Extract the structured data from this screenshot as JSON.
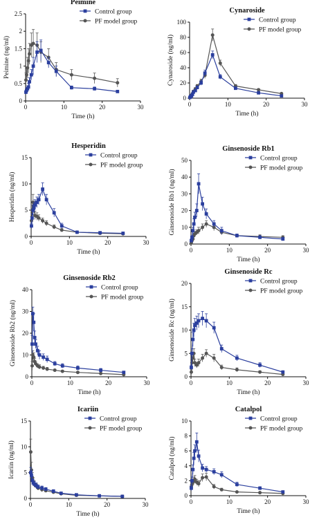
{
  "chart_data": [
    {
      "type": "line",
      "title": "Peimine",
      "xlabel": "Time (h)",
      "ylabel": "Peimine (ng/ml)",
      "xlim": [
        0,
        30
      ],
      "xticks": [
        0,
        10,
        20,
        30
      ],
      "ylim": [
        0,
        2.5
      ],
      "yticks": [
        0,
        0.5,
        1,
        1.5,
        2,
        2.5
      ],
      "grid": false,
      "legend": "top-right",
      "series": [
        {
          "name": "Control group",
          "color": "#2b3f9e",
          "marker": "square",
          "x": [
            0.083,
            0.25,
            0.5,
            0.75,
            1,
            1.5,
            2,
            3,
            4,
            6,
            8,
            12,
            18,
            24
          ],
          "y": [
            0.25,
            0.3,
            0.35,
            0.4,
            0.55,
            0.75,
            1.0,
            1.4,
            1.45,
            1.1,
            0.85,
            0.38,
            0.35,
            0.27
          ],
          "err": [
            0.05,
            0.08,
            0.08,
            0.1,
            0.12,
            0.15,
            0.25,
            0.3,
            0.3,
            0.15,
            0.15,
            0.05,
            0.05,
            0.04
          ]
        },
        {
          "name": "PF model group",
          "color": "#555555",
          "marker": "circle",
          "x": [
            0.083,
            0.25,
            0.5,
            0.75,
            1,
            1.5,
            2,
            3,
            4,
            6,
            8,
            12,
            18,
            24
          ],
          "y": [
            0.6,
            0.75,
            0.95,
            1.15,
            1.35,
            1.6,
            1.65,
            1.6,
            1.4,
            1.25,
            0.9,
            0.75,
            0.65,
            0.52
          ],
          "err": [
            0.2,
            0.2,
            0.3,
            0.35,
            0.3,
            0.35,
            0.4,
            0.35,
            0.3,
            0.25,
            0.2,
            0.15,
            0.15,
            0.12
          ]
        }
      ]
    },
    {
      "type": "line",
      "title": "Cynaroside",
      "xlabel": "Time (h)",
      "ylabel": "Cynaroside (ng/ml)",
      "xlim": [
        0,
        30
      ],
      "xticks": [
        0,
        10,
        20,
        30
      ],
      "ylim": [
        0,
        100
      ],
      "yticks": [
        0,
        20,
        40,
        60,
        80,
        100
      ],
      "grid": false,
      "legend": "top-right",
      "series": [
        {
          "name": "Control group",
          "color": "#2b3f9e",
          "marker": "square",
          "x": [
            0.083,
            0.25,
            0.5,
            0.75,
            1,
            1.5,
            2,
            3,
            4,
            6,
            8,
            12,
            18,
            24
          ],
          "y": [
            1,
            2,
            3,
            5,
            8,
            10,
            14,
            20,
            33,
            57,
            28,
            13,
            7,
            3
          ],
          "err": [
            0.5,
            1,
            1,
            1,
            1.5,
            2,
            2,
            3,
            4,
            5,
            3,
            2,
            1,
            1
          ]
        },
        {
          "name": "PF model group",
          "color": "#555555",
          "marker": "circle",
          "x": [
            0.083,
            0.25,
            0.5,
            0.75,
            1,
            1.5,
            2,
            3,
            4,
            6,
            8,
            12,
            18,
            24
          ],
          "y": [
            1,
            2,
            4,
            6,
            9,
            12,
            16,
            22,
            30,
            83,
            46,
            16,
            11,
            6
          ],
          "err": [
            0.5,
            1,
            1,
            1,
            1.5,
            2,
            2,
            3,
            4,
            8,
            4,
            2,
            1.5,
            1
          ]
        }
      ]
    },
    {
      "type": "line",
      "title": "Hesperidin",
      "xlabel": "Time (h)",
      "ylabel": "Hesperidin (ng/ml)",
      "xlim": [
        0,
        30
      ],
      "xticks": [
        0,
        10,
        20,
        30
      ],
      "ylim": [
        0,
        15
      ],
      "yticks": [
        0,
        5,
        10,
        15
      ],
      "grid": false,
      "legend": "top-right",
      "series": [
        {
          "name": "Control group",
          "color": "#2b3f9e",
          "marker": "square",
          "x": [
            0.083,
            0.25,
            0.5,
            0.75,
            1,
            1.5,
            2,
            3,
            4,
            6,
            8,
            12,
            18,
            24
          ],
          "y": [
            2,
            3.5,
            5,
            5.5,
            6,
            6.5,
            7,
            9,
            7,
            4.5,
            2,
            0.8,
            0.7,
            0.6
          ],
          "err": [
            0.5,
            0.8,
            1,
            1,
            1,
            1,
            1,
            1.2,
            1,
            0.8,
            0.5,
            0.2,
            0.2,
            0.2
          ]
        },
        {
          "name": "PF model group",
          "color": "#555555",
          "marker": "circle",
          "x": [
            0.083,
            0.25,
            0.5,
            0.75,
            1,
            1.5,
            2,
            3,
            4,
            6,
            8,
            12,
            18,
            24
          ],
          "y": [
            3,
            5,
            6.5,
            5.5,
            4,
            3.8,
            3.5,
            3,
            2.5,
            1.8,
            1.2,
            0.8,
            0.6,
            0.5
          ],
          "err": [
            0.8,
            1,
            1.5,
            1,
            0.8,
            0.7,
            0.6,
            0.5,
            0.5,
            0.4,
            0.3,
            0.2,
            0.2,
            0.2
          ]
        }
      ]
    },
    {
      "type": "line",
      "title": "Ginsenoside Rb1",
      "xlabel": "Time (h)",
      "ylabel": "Ginsenoside Rb1 (ng/ml)",
      "xlim": [
        0,
        30
      ],
      "xticks": [
        0,
        10,
        20,
        30
      ],
      "ylim": [
        0,
        50
      ],
      "yticks": [
        0,
        10,
        20,
        30,
        40,
        50
      ],
      "grid": false,
      "legend": "top-right",
      "series": [
        {
          "name": "Control group",
          "color": "#2b3f9e",
          "marker": "square",
          "x": [
            0.083,
            0.25,
            0.5,
            0.75,
            1,
            1.5,
            2,
            3,
            4,
            6,
            8,
            12,
            18,
            24
          ],
          "y": [
            2,
            4,
            8,
            12,
            16,
            20,
            36,
            24,
            18,
            12,
            8,
            5,
            4,
            3
          ],
          "err": [
            1,
            1,
            2,
            3,
            3,
            4,
            6,
            4,
            3,
            2,
            2,
            1,
            1,
            1
          ]
        },
        {
          "name": "PF model group",
          "color": "#555555",
          "marker": "circle",
          "x": [
            0.083,
            0.25,
            0.5,
            0.75,
            1,
            1.5,
            2,
            3,
            4,
            6,
            8,
            12,
            18,
            24
          ],
          "y": [
            1,
            2,
            3,
            5,
            6,
            7,
            8,
            10,
            12,
            10,
            7,
            5,
            4.5,
            4
          ],
          "err": [
            0.5,
            1,
            1,
            1.5,
            1.5,
            1.5,
            2,
            2,
            2,
            2,
            1.5,
            1,
            1,
            1
          ]
        }
      ]
    },
    {
      "type": "line",
      "title": "Ginsenoside Rb2",
      "xlabel": "Time (h)",
      "ylabel": "Ginsenoside Rb2 (ng/ml)",
      "xlim": [
        0,
        30
      ],
      "xticks": [
        0,
        10,
        20,
        30
      ],
      "ylim": [
        0,
        40
      ],
      "yticks": [
        0,
        10,
        20,
        30,
        40
      ],
      "grid": false,
      "legend": "top-right",
      "series": [
        {
          "name": "Control group",
          "color": "#2b3f9e",
          "marker": "square",
          "x": [
            0.083,
            0.25,
            0.5,
            0.75,
            1,
            1.5,
            2,
            3,
            4,
            6,
            8,
            12,
            18,
            24
          ],
          "y": [
            15,
            29,
            25,
            18,
            15,
            12,
            10,
            9,
            8,
            6,
            5,
            4,
            3,
            2
          ],
          "err": [
            4,
            3,
            4,
            3,
            2,
            2,
            2,
            1.5,
            1.5,
            1,
            1,
            1,
            0.8,
            0.5
          ]
        },
        {
          "name": "PF model group",
          "color": "#555555",
          "marker": "circle",
          "x": [
            0.083,
            0.25,
            0.5,
            0.75,
            1,
            1.5,
            2,
            3,
            4,
            6,
            8,
            12,
            18,
            24
          ],
          "y": [
            5,
            10,
            9,
            7,
            6,
            5,
            4.5,
            4,
            3.5,
            3,
            2.5,
            2,
            1.5,
            1
          ],
          "err": [
            2,
            2,
            2,
            1.5,
            1,
            1,
            1,
            0.8,
            0.8,
            0.5,
            0.5,
            0.5,
            0.4,
            0.3
          ]
        }
      ]
    },
    {
      "type": "line",
      "title": "Ginsenoside Rc",
      "xlabel": "Time (h)",
      "ylabel": "Ginsenoside Rc (ng/ml)",
      "xlim": [
        0,
        30
      ],
      "xticks": [
        0,
        10,
        20,
        30
      ],
      "ylim": [
        0,
        20
      ],
      "yticks": [
        0,
        5,
        10,
        15,
        20
      ],
      "grid": false,
      "legend": "top-right",
      "series": [
        {
          "name": "Control group",
          "color": "#2b3f9e",
          "marker": "square",
          "x": [
            0.083,
            0.25,
            0.5,
            0.75,
            1,
            1.5,
            2,
            3,
            4,
            6,
            8,
            12,
            18,
            24
          ],
          "y": [
            2,
            5,
            8,
            10,
            11,
            11.5,
            12,
            12.5,
            12,
            10.5,
            6,
            4,
            2.5,
            1
          ],
          "err": [
            0.5,
            1,
            1.5,
            1.5,
            1.5,
            1.5,
            1.5,
            1.5,
            1.5,
            1.2,
            0.8,
            0.6,
            0.5,
            0.3
          ]
        },
        {
          "name": "PF model group",
          "color": "#555555",
          "marker": "circle",
          "x": [
            0.083,
            0.25,
            0.5,
            0.75,
            1,
            1.5,
            2,
            3,
            4,
            6,
            8,
            12,
            18,
            24
          ],
          "y": [
            1,
            3,
            4,
            5,
            3,
            2.5,
            3,
            4,
            5,
            4,
            2,
            1.5,
            1,
            0.5
          ],
          "err": [
            0.5,
            1,
            1,
            1,
            0.8,
            0.6,
            0.8,
            0.8,
            0.8,
            0.8,
            0.5,
            0.4,
            0.3,
            0.2
          ]
        }
      ]
    },
    {
      "type": "line",
      "title": "Icariin",
      "xlabel": "Time (h)",
      "ylabel": "Icariin (ng/ml)",
      "xlim": [
        0,
        30
      ],
      "xticks": [
        0,
        10,
        20,
        30
      ],
      "ylim": [
        0,
        15
      ],
      "yticks": [
        0,
        5,
        10,
        15
      ],
      "grid": false,
      "legend": "top-right",
      "series": [
        {
          "name": "Control group",
          "color": "#2b3f9e",
          "marker": "square",
          "x": [
            0.083,
            0.25,
            0.5,
            0.75,
            1,
            1.5,
            2,
            3,
            4,
            6,
            8,
            12,
            18,
            24
          ],
          "y": [
            5,
            4.5,
            3.5,
            3,
            2.8,
            2.5,
            2.2,
            2,
            1.8,
            1.4,
            1,
            0.7,
            0.5,
            0.4
          ],
          "err": [
            1,
            1,
            0.8,
            0.6,
            0.5,
            0.5,
            0.4,
            0.4,
            0.3,
            0.3,
            0.2,
            0.2,
            0.1,
            0.1
          ]
        },
        {
          "name": "PF model group",
          "color": "#555555",
          "marker": "circle",
          "x": [
            0.083,
            0.25,
            0.5,
            0.75,
            1,
            1.5,
            2,
            3,
            4,
            6,
            8,
            12,
            18,
            24
          ],
          "y": [
            9,
            5.5,
            4,
            3.2,
            2.8,
            2.4,
            2,
            1.7,
            1.5,
            1.2,
            0.9,
            0.6,
            0.5,
            0.4
          ],
          "err": [
            2.5,
            1.5,
            1,
            0.8,
            0.6,
            0.5,
            0.4,
            0.4,
            0.3,
            0.3,
            0.2,
            0.2,
            0.1,
            0.1
          ]
        }
      ]
    },
    {
      "type": "line",
      "title": "Catalpol",
      "xlabel": "Time (h)",
      "ylabel": "Catalpol (ng/ml)",
      "xlim": [
        0,
        30
      ],
      "xticks": [
        0,
        10,
        20,
        30
      ],
      "ylim": [
        0,
        10
      ],
      "yticks": [
        0,
        2,
        4,
        6,
        8,
        10
      ],
      "grid": false,
      "legend": "top-right",
      "series": [
        {
          "name": "Control group",
          "color": "#2b3f9e",
          "marker": "square",
          "x": [
            0.083,
            0.25,
            0.5,
            0.75,
            1,
            1.5,
            2,
            3,
            4,
            6,
            8,
            12,
            18,
            24
          ],
          "y": [
            1,
            2,
            3.5,
            5,
            6,
            7.2,
            5.3,
            3.7,
            3.5,
            3.2,
            2.8,
            1.5,
            1,
            0.5
          ],
          "err": [
            0.3,
            0.5,
            0.6,
            0.8,
            0.8,
            1.2,
            0.8,
            0.5,
            0.4,
            0.4,
            0.4,
            0.3,
            0.2,
            0.1
          ]
        },
        {
          "name": "PF model group",
          "color": "#555555",
          "marker": "circle",
          "x": [
            0.083,
            0.25,
            0.5,
            0.75,
            1,
            1.5,
            2,
            3,
            4,
            6,
            8,
            12,
            18,
            24
          ],
          "y": [
            1.2,
            1.5,
            1.8,
            2,
            2.2,
            1.8,
            1.6,
            2.4,
            2.5,
            1.2,
            0.8,
            0.5,
            0.4,
            0.3
          ],
          "err": [
            0.3,
            0.4,
            0.4,
            0.5,
            0.5,
            0.4,
            0.4,
            0.5,
            0.5,
            0.3,
            0.2,
            0.1,
            0.1,
            0.1
          ]
        }
      ]
    }
  ]
}
